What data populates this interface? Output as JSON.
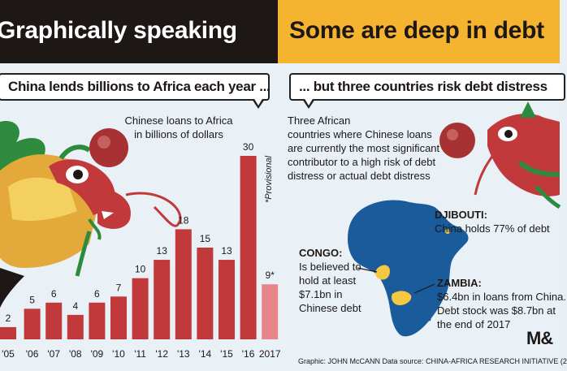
{
  "header": {
    "left_title": "Graphically speaking",
    "right_title": "Some are deep in debt"
  },
  "bubbles": {
    "left": "China lends billions to Africa each year ...",
    "right": "... but three countries risk debt distress"
  },
  "chart_data": {
    "type": "bar",
    "title": "Chinese loans to Africa in billions of dollars",
    "title_lines": [
      "Chinese loans to Africa",
      "in billions of dollars"
    ],
    "categories": [
      "'05",
      "'06",
      "'07",
      "'08",
      "'09",
      "'10",
      "'11",
      "'12",
      "'13",
      "'14",
      "'15",
      "'16",
      "2017"
    ],
    "values": [
      2,
      5,
      6,
      4,
      6,
      7,
      10,
      13,
      18,
      15,
      13,
      30,
      9
    ],
    "value_labels": [
      "2",
      "5",
      "6",
      "4",
      "6",
      "7",
      "10",
      "13",
      "18",
      "15",
      "13",
      "30",
      "9*"
    ],
    "provisional_index": 12,
    "provisional_note": "*Provisional",
    "ylim": [
      0,
      30
    ],
    "grid": false,
    "colors": {
      "bar": "#c2393b",
      "bar_provisional": "#e8858a"
    }
  },
  "right_panel": {
    "description_lines": [
      "Three African",
      "countries where Chinese loans",
      "are currently the most significant",
      "contributor to a high risk of debt",
      "distress or actual debt distress"
    ],
    "countries": [
      {
        "name": "DJIBOUTI:",
        "lines": [
          "China holds 77% of debt"
        ]
      },
      {
        "name": "CONGO:",
        "lines": [
          "Is believed to",
          "hold at least",
          "$7.1bn in",
          "Chinese debt"
        ]
      },
      {
        "name": "ZAMBIA:",
        "lines": [
          "$6.4bn in loans from China.",
          "Debt stock was $8.7bn at",
          "the end of 2017"
        ]
      }
    ],
    "colors": {
      "africa": "#1a5b9c",
      "highlight": "#f5c842"
    }
  },
  "credits": "Graphic: JOHN McCANN  Data source: CHINA-AFRICA RESEARCH INITIATIVE (2",
  "logo": "M&"
}
